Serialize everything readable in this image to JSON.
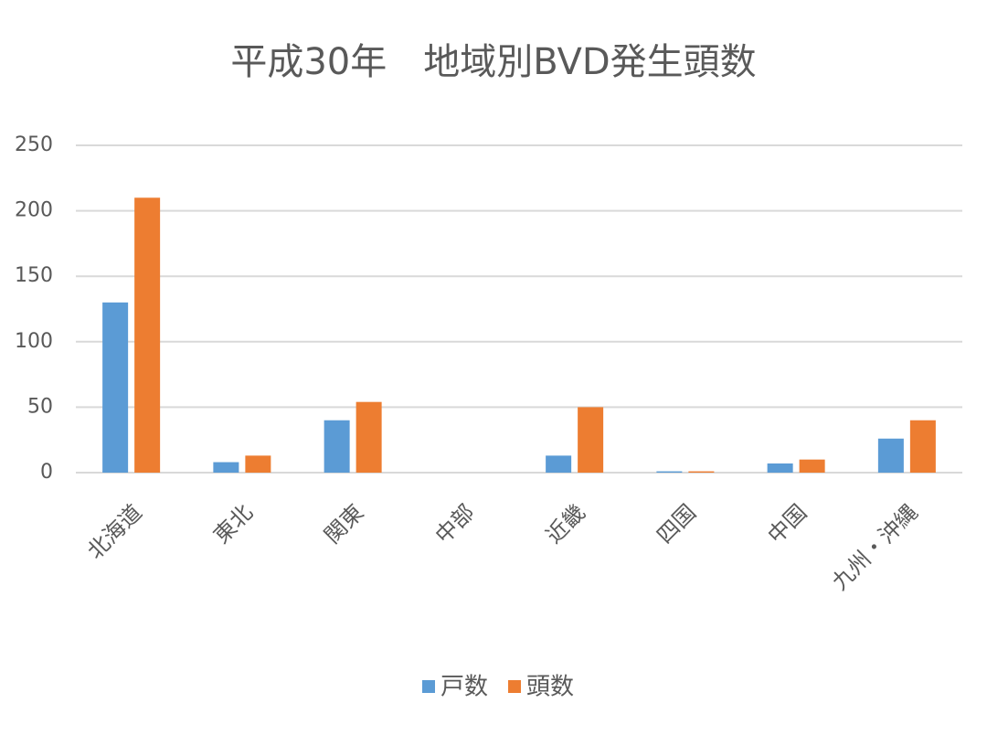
{
  "chart_data": {
    "type": "bar",
    "title": "平成30年　地域別BVD発生頭数",
    "categories": [
      "北海道",
      "東北",
      "関東",
      "中部",
      "近畿",
      "四国",
      "中国",
      "九州・沖縄"
    ],
    "series": [
      {
        "name": "戸数",
        "color": "#5b9bd5",
        "values": [
          130,
          8,
          40,
          0,
          13,
          1,
          7,
          26
        ]
      },
      {
        "name": "頭数",
        "color": "#ed7d31",
        "values": [
          210,
          13,
          54,
          0,
          50,
          1,
          10,
          40
        ]
      }
    ],
    "ylim": [
      0,
      250
    ],
    "yticks": [
      0,
      50,
      100,
      150,
      200,
      250
    ],
    "grid": true
  }
}
